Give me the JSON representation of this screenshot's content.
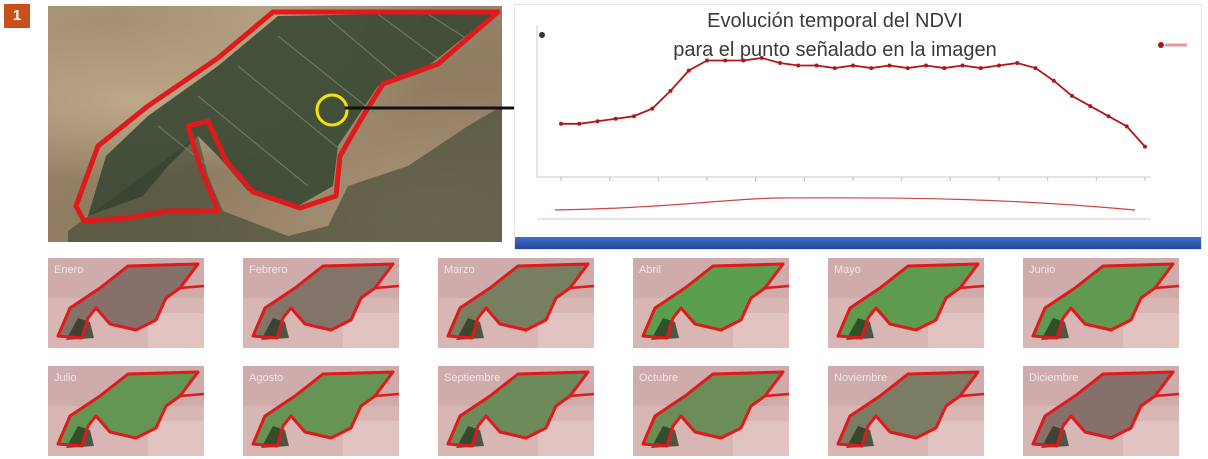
{
  "figure_number": "1",
  "chart": {
    "title_line1": "Evolución temporal del NDVI",
    "title_line2": "para el punto señalado en la imagen"
  },
  "months": [
    {
      "label": "Enero",
      "green": 0.1
    },
    {
      "label": "Febrero",
      "green": 0.15
    },
    {
      "label": "Marzo",
      "green": 0.35
    },
    {
      "label": "Abril",
      "green": 0.9
    },
    {
      "label": "Mayo",
      "green": 0.85
    },
    {
      "label": "Junio",
      "green": 0.8
    },
    {
      "label": "Julio",
      "green": 0.75
    },
    {
      "label": "Agosto",
      "green": 0.72
    },
    {
      "label": "Septiembre",
      "green": 0.55
    },
    {
      "label": "Octubre",
      "green": 0.6
    },
    {
      "label": "Noviembre",
      "green": 0.3
    },
    {
      "label": "Diciembre",
      "green": 0.08
    }
  ],
  "colors": {
    "parcel_outline": "#e0191b",
    "point_marker": "#f2e600",
    "ndvi_line": "#b01818",
    "badge": "#c8501a"
  },
  "chart_data": {
    "type": "line",
    "title": "Evolución temporal del NDVI para el punto señalado en la imagen",
    "xlabel": "",
    "ylabel": "",
    "series": [
      {
        "values": [
          0.31,
          0.31,
          0.32,
          0.33,
          0.34,
          0.37,
          0.44,
          0.52,
          0.56,
          0.56,
          0.56,
          0.57,
          0.55,
          0.54,
          0.54,
          0.53,
          0.54,
          0.53,
          0.54,
          0.53,
          0.54,
          0.53,
          0.54,
          0.53,
          0.54,
          0.55,
          0.53,
          0.48,
          0.42,
          0.38,
          0.34,
          0.3,
          0.22
        ]
      }
    ]
  }
}
